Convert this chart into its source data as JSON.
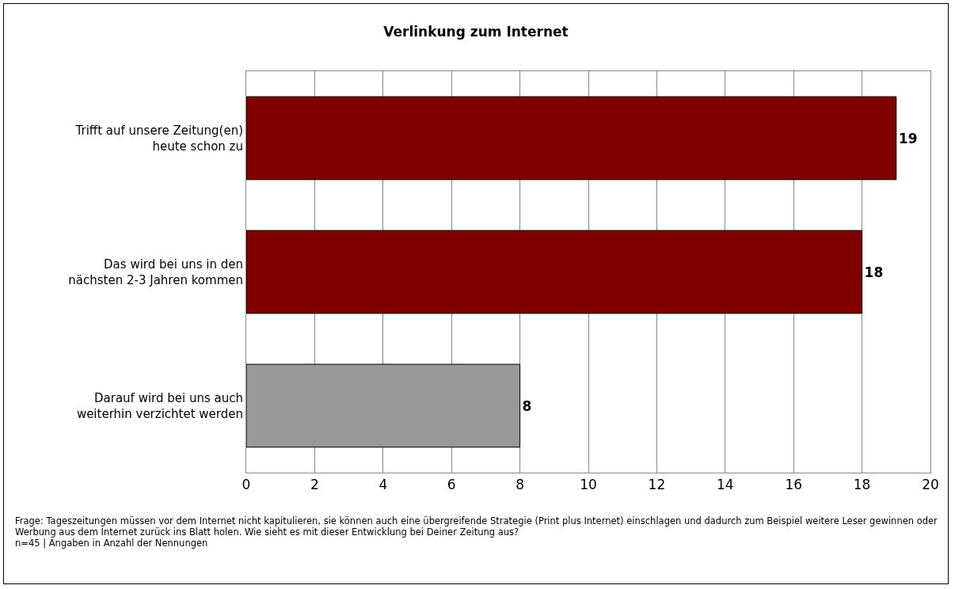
{
  "chart_data": {
    "type": "bar",
    "orientation": "horizontal",
    "title": "Verlinkung zum Internet",
    "categories": [
      "Trifft auf unsere Zeitung(en)\nheute schon zu",
      "Das wird bei uns in den\nnächsten 2-3 Jahren kommen",
      "Darauf wird bei uns auch\nweiterhin verzichtet werden"
    ],
    "values": [
      19,
      18,
      8
    ],
    "colors": [
      "#800000",
      "#800000",
      "#999999"
    ],
    "xlim": [
      0,
      20
    ],
    "xticks": [
      0,
      2,
      4,
      6,
      8,
      10,
      12,
      14,
      16,
      18,
      20
    ],
    "grid": "x",
    "data_labels": true,
    "annotations": [
      "Frage: Tageszeitungen müssen vor dem Internet nicht kapitulieren, sie können auch eine übergreifende Strategie (Print plus Internet) einschlagen und dadurch zum Beispiel weitere Leser gewinnen oder Werbung aus dem Internet zurück ins Blatt holen. Wie sieht es mit dieser Entwicklung bei Deiner Zeitung aus?",
      "n=45 | Angaben in Anzahl der Nennungen"
    ]
  }
}
